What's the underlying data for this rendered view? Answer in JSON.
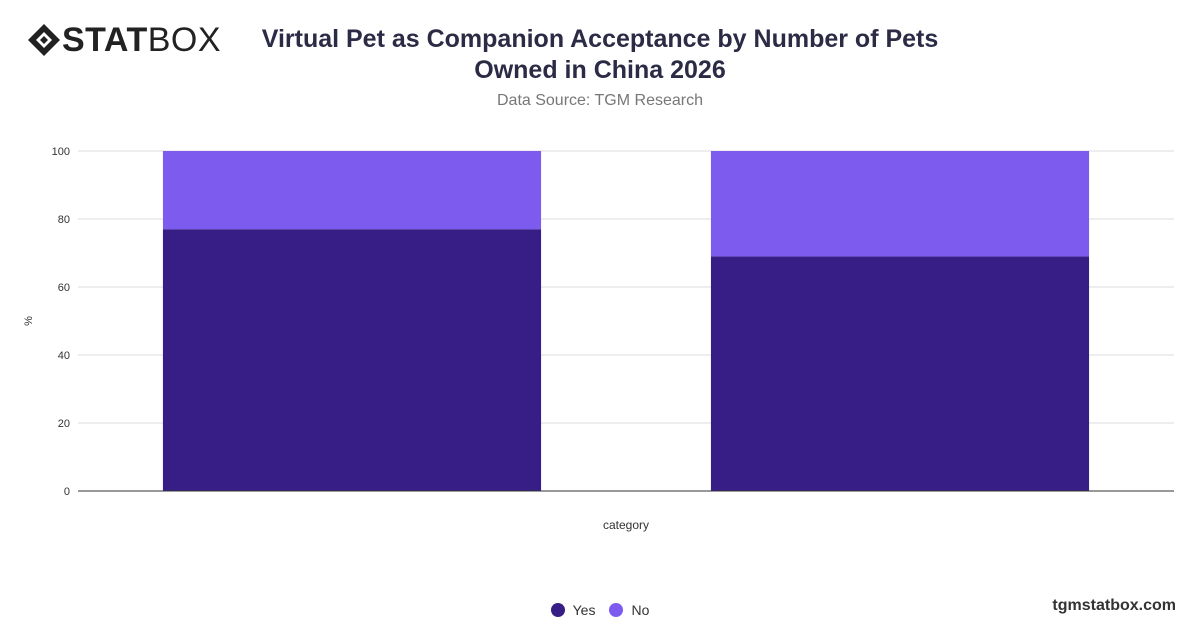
{
  "brand": {
    "logo_bold": "STAT",
    "logo_light": "BOX",
    "watermark": "tgmstatbox.com"
  },
  "chart_data": {
    "type": "bar",
    "stacked": true,
    "title": "Virtual Pet as Companion Acceptance by Number of Pets Owned in China 2026",
    "subtitle": "Data Source: TGM Research",
    "xlabel": "category",
    "ylabel": "%",
    "ylim": [
      0,
      100
    ],
    "yticks": [
      0,
      20,
      40,
      60,
      80,
      100
    ],
    "categories": [
      "",
      ""
    ],
    "series": [
      {
        "name": "Yes",
        "color": "#371e86",
        "values": [
          77,
          69
        ]
      },
      {
        "name": "No",
        "color": "#7e5bef",
        "values": [
          23,
          31
        ]
      }
    ],
    "grid": true,
    "legend_position": "bottom"
  }
}
